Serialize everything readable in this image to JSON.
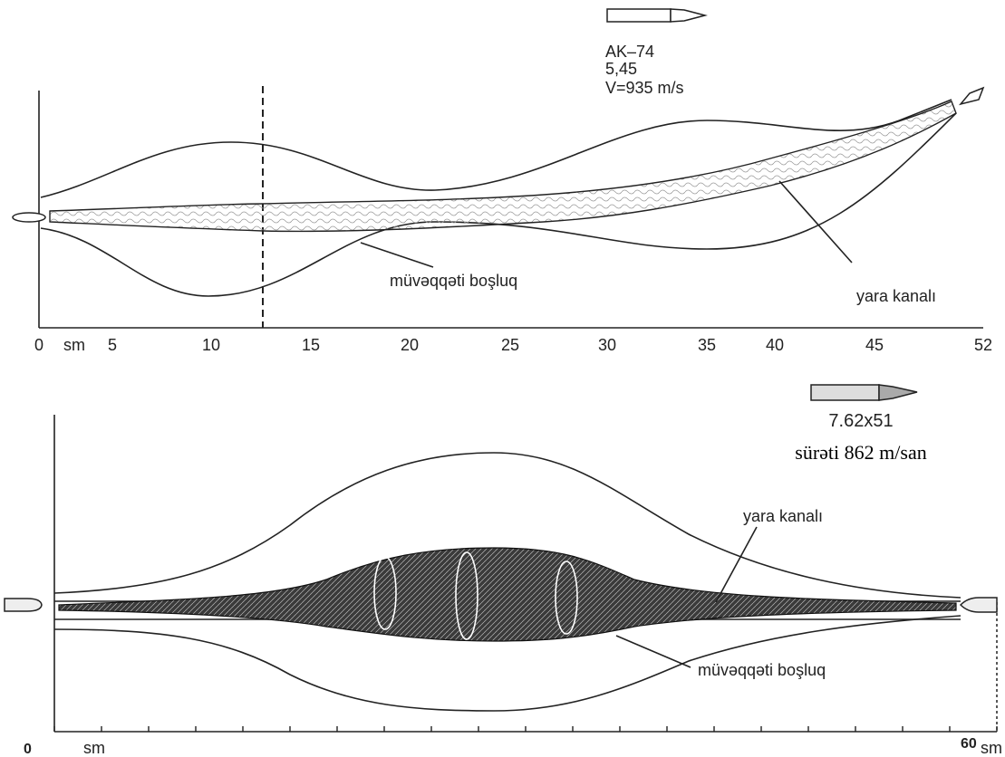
{
  "top": {
    "cartridge": "AK–74",
    "caliber": "5,45",
    "velocity": "V=935 m/s",
    "cavity_label": "müvəqqəti boşluq",
    "channel_label": "yara kanalı",
    "axis_labels": [
      "0",
      "sm",
      "5",
      "10",
      "15",
      "20",
      "25",
      "30",
      "35",
      "40",
      "45",
      "52"
    ]
  },
  "bottom": {
    "cartridge": "7.62x51",
    "velocity": "sürəti 862 m/san",
    "channel_label": "yara kanalı",
    "cavity_label": "müvəqqəti boşluq",
    "axis_start": "0",
    "axis_start_unit": "sm",
    "axis_end": "60",
    "axis_end_unit": "sm"
  }
}
